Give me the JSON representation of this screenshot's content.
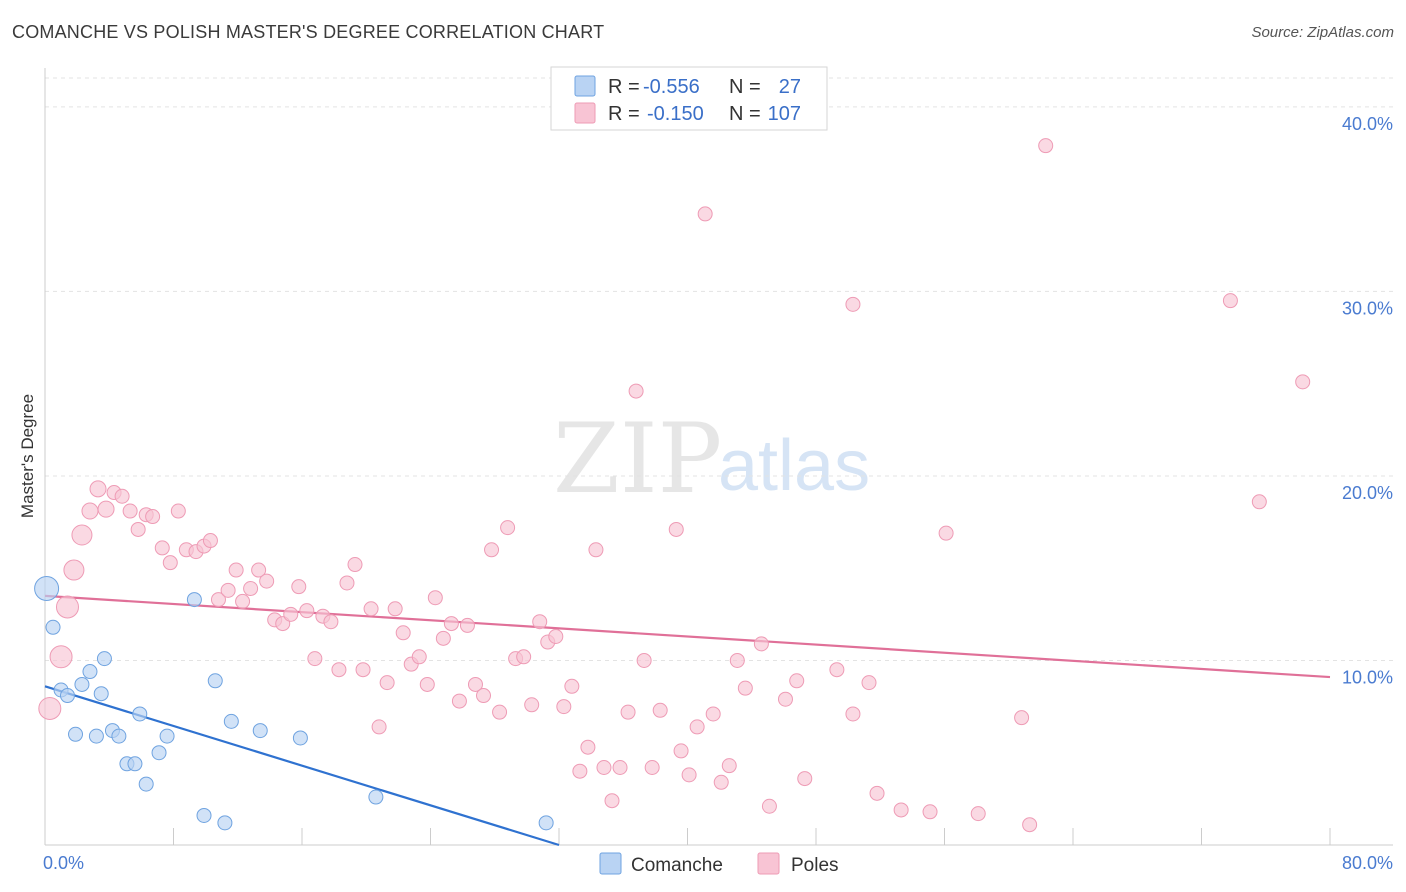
{
  "header": {
    "title": "COMANCHE VS POLISH MASTER'S DEGREE CORRELATION CHART",
    "source": "Source: ZipAtlas.com"
  },
  "watermark": {
    "zip": "ZIP",
    "atlas": "atlas"
  },
  "chart_data": {
    "type": "scatter",
    "title": "COMANCHE VS POLISH MASTER'S DEGREE CORRELATION CHART",
    "xlabel": "",
    "ylabel": "Master's Degree",
    "xlim": [
      0,
      80
    ],
    "ylim": [
      0,
      42
    ],
    "x_tick_labels": {
      "min": "0.0%",
      "max": "80.0%"
    },
    "y_ticks": [
      10,
      20,
      30,
      40
    ],
    "y_tick_labels": [
      "10.0%",
      "20.0%",
      "30.0%",
      "40.0%"
    ],
    "grid": true,
    "legend_position": "bottom-center",
    "series": [
      {
        "name": "Comanche",
        "color": "#6fa3e0",
        "fill": "#b9d3f3",
        "line_color": "#2f72d0",
        "R_label": "R =",
        "R": "-0.556",
        "N_label": "N =",
        "N": "27",
        "trend": {
          "x": [
            0,
            32
          ],
          "y": [
            8.6,
            0
          ]
        },
        "points": [
          {
            "x": 0.1,
            "y": 13.9,
            "s": 24
          },
          {
            "x": 0.5,
            "y": 11.8,
            "s": 14
          },
          {
            "x": 1.0,
            "y": 8.4,
            "s": 14
          },
          {
            "x": 1.4,
            "y": 8.1,
            "s": 14
          },
          {
            "x": 1.9,
            "y": 6.0,
            "s": 14
          },
          {
            "x": 2.3,
            "y": 8.7,
            "s": 14
          },
          {
            "x": 2.8,
            "y": 9.4,
            "s": 14
          },
          {
            "x": 3.2,
            "y": 5.9,
            "s": 14
          },
          {
            "x": 3.5,
            "y": 8.2,
            "s": 14
          },
          {
            "x": 3.7,
            "y": 10.1,
            "s": 14
          },
          {
            "x": 4.2,
            "y": 6.2,
            "s": 14
          },
          {
            "x": 4.6,
            "y": 5.9,
            "s": 14
          },
          {
            "x": 5.1,
            "y": 4.4,
            "s": 14
          },
          {
            "x": 5.6,
            "y": 4.4,
            "s": 14
          },
          {
            "x": 5.9,
            "y": 7.1,
            "s": 14
          },
          {
            "x": 6.3,
            "y": 3.3,
            "s": 14
          },
          {
            "x": 7.1,
            "y": 5.0,
            "s": 14
          },
          {
            "x": 7.6,
            "y": 5.9,
            "s": 14
          },
          {
            "x": 9.3,
            "y": 13.3,
            "s": 14
          },
          {
            "x": 9.9,
            "y": 1.6,
            "s": 14
          },
          {
            "x": 10.6,
            "y": 8.9,
            "s": 14
          },
          {
            "x": 11.2,
            "y": 1.2,
            "s": 14
          },
          {
            "x": 11.6,
            "y": 6.7,
            "s": 14
          },
          {
            "x": 13.4,
            "y": 6.2,
            "s": 14
          },
          {
            "x": 15.9,
            "y": 5.8,
            "s": 14
          },
          {
            "x": 20.6,
            "y": 2.6,
            "s": 14
          },
          {
            "x": 31.2,
            "y": 1.2,
            "s": 14
          }
        ]
      },
      {
        "name": "Poles",
        "color": "#ee9bb5",
        "fill": "#f8c4d4",
        "line_color": "#e07098",
        "R_label": "R =",
        "R": "-0.150",
        "N_label": "N =",
        "N": "107",
        "trend": {
          "x": [
            0,
            80
          ],
          "y": [
            13.5,
            9.1
          ]
        },
        "points": [
          {
            "x": 0.3,
            "y": 7.4,
            "s": 22
          },
          {
            "x": 1.0,
            "y": 10.2,
            "s": 22
          },
          {
            "x": 1.4,
            "y": 12.9,
            "s": 22
          },
          {
            "x": 1.8,
            "y": 14.9,
            "s": 20
          },
          {
            "x": 2.3,
            "y": 16.8,
            "s": 20
          },
          {
            "x": 2.8,
            "y": 18.1,
            "s": 16
          },
          {
            "x": 3.3,
            "y": 19.3,
            "s": 16
          },
          {
            "x": 3.8,
            "y": 18.2,
            "s": 16
          },
          {
            "x": 4.3,
            "y": 19.1,
            "s": 14
          },
          {
            "x": 4.8,
            "y": 18.9,
            "s": 14
          },
          {
            "x": 5.3,
            "y": 18.1,
            "s": 14
          },
          {
            "x": 5.8,
            "y": 17.1,
            "s": 14
          },
          {
            "x": 6.3,
            "y": 17.9,
            "s": 14
          },
          {
            "x": 6.7,
            "y": 17.8,
            "s": 14
          },
          {
            "x": 7.3,
            "y": 16.1,
            "s": 14
          },
          {
            "x": 7.8,
            "y": 15.3,
            "s": 14
          },
          {
            "x": 8.3,
            "y": 18.1,
            "s": 14
          },
          {
            "x": 8.8,
            "y": 16.0,
            "s": 14
          },
          {
            "x": 9.4,
            "y": 15.9,
            "s": 14
          },
          {
            "x": 9.9,
            "y": 16.2,
            "s": 14
          },
          {
            "x": 10.3,
            "y": 16.5,
            "s": 14
          },
          {
            "x": 10.8,
            "y": 13.3,
            "s": 14
          },
          {
            "x": 11.4,
            "y": 13.8,
            "s": 14
          },
          {
            "x": 11.9,
            "y": 14.9,
            "s": 14
          },
          {
            "x": 12.3,
            "y": 13.2,
            "s": 14
          },
          {
            "x": 12.8,
            "y": 13.9,
            "s": 14
          },
          {
            "x": 13.3,
            "y": 14.9,
            "s": 14
          },
          {
            "x": 13.8,
            "y": 14.3,
            "s": 14
          },
          {
            "x": 14.3,
            "y": 12.2,
            "s": 14
          },
          {
            "x": 14.8,
            "y": 12.0,
            "s": 14
          },
          {
            "x": 15.3,
            "y": 12.5,
            "s": 14
          },
          {
            "x": 15.8,
            "y": 14.0,
            "s": 14
          },
          {
            "x": 16.3,
            "y": 12.7,
            "s": 14
          },
          {
            "x": 16.8,
            "y": 10.1,
            "s": 14
          },
          {
            "x": 17.3,
            "y": 12.4,
            "s": 14
          },
          {
            "x": 17.8,
            "y": 12.1,
            "s": 14
          },
          {
            "x": 18.3,
            "y": 9.5,
            "s": 14
          },
          {
            "x": 18.8,
            "y": 14.2,
            "s": 14
          },
          {
            "x": 19.3,
            "y": 15.2,
            "s": 14
          },
          {
            "x": 19.8,
            "y": 9.5,
            "s": 14
          },
          {
            "x": 20.3,
            "y": 12.8,
            "s": 14
          },
          {
            "x": 20.8,
            "y": 6.4,
            "s": 14
          },
          {
            "x": 21.3,
            "y": 8.8,
            "s": 14
          },
          {
            "x": 21.8,
            "y": 12.8,
            "s": 14
          },
          {
            "x": 22.3,
            "y": 11.5,
            "s": 14
          },
          {
            "x": 22.8,
            "y": 9.8,
            "s": 14
          },
          {
            "x": 23.3,
            "y": 10.2,
            "s": 14
          },
          {
            "x": 23.8,
            "y": 8.7,
            "s": 14
          },
          {
            "x": 24.3,
            "y": 13.4,
            "s": 14
          },
          {
            "x": 24.8,
            "y": 11.2,
            "s": 14
          },
          {
            "x": 25.3,
            "y": 12.0,
            "s": 14
          },
          {
            "x": 25.8,
            "y": 7.8,
            "s": 14
          },
          {
            "x": 26.3,
            "y": 11.9,
            "s": 14
          },
          {
            "x": 26.8,
            "y": 8.7,
            "s": 14
          },
          {
            "x": 27.3,
            "y": 8.1,
            "s": 14
          },
          {
            "x": 27.8,
            "y": 16.0,
            "s": 14
          },
          {
            "x": 28.3,
            "y": 7.2,
            "s": 14
          },
          {
            "x": 28.8,
            "y": 17.2,
            "s": 14
          },
          {
            "x": 29.3,
            "y": 10.1,
            "s": 14
          },
          {
            "x": 29.8,
            "y": 10.2,
            "s": 14
          },
          {
            "x": 30.3,
            "y": 7.6,
            "s": 14
          },
          {
            "x": 30.8,
            "y": 12.1,
            "s": 14
          },
          {
            "x": 31.3,
            "y": 11.0,
            "s": 14
          },
          {
            "x": 31.8,
            "y": 11.3,
            "s": 14
          },
          {
            "x": 32.3,
            "y": 7.5,
            "s": 14
          },
          {
            "x": 32.8,
            "y": 8.6,
            "s": 14
          },
          {
            "x": 33.3,
            "y": 4.0,
            "s": 14
          },
          {
            "x": 33.8,
            "y": 5.3,
            "s": 14
          },
          {
            "x": 34.3,
            "y": 16.0,
            "s": 14
          },
          {
            "x": 34.8,
            "y": 4.2,
            "s": 14
          },
          {
            "x": 35.3,
            "y": 2.4,
            "s": 14
          },
          {
            "x": 35.8,
            "y": 4.2,
            "s": 14
          },
          {
            "x": 36.3,
            "y": 7.2,
            "s": 14
          },
          {
            "x": 36.8,
            "y": 24.6,
            "s": 14
          },
          {
            "x": 37.3,
            "y": 10.0,
            "s": 14
          },
          {
            "x": 37.8,
            "y": 4.2,
            "s": 14
          },
          {
            "x": 38.3,
            "y": 7.3,
            "s": 14
          },
          {
            "x": 39.3,
            "y": 17.1,
            "s": 14
          },
          {
            "x": 39.6,
            "y": 5.1,
            "s": 14
          },
          {
            "x": 40.1,
            "y": 3.8,
            "s": 14
          },
          {
            "x": 40.6,
            "y": 6.4,
            "s": 14
          },
          {
            "x": 41.1,
            "y": 34.2,
            "s": 14
          },
          {
            "x": 41.6,
            "y": 7.1,
            "s": 14
          },
          {
            "x": 42.1,
            "y": 3.4,
            "s": 14
          },
          {
            "x": 42.6,
            "y": 4.3,
            "s": 14
          },
          {
            "x": 43.1,
            "y": 10.0,
            "s": 14
          },
          {
            "x": 43.6,
            "y": 8.5,
            "s": 14
          },
          {
            "x": 44.6,
            "y": 10.9,
            "s": 14
          },
          {
            "x": 45.1,
            "y": 2.1,
            "s": 14
          },
          {
            "x": 46.1,
            "y": 7.9,
            "s": 14
          },
          {
            "x": 46.8,
            "y": 8.9,
            "s": 14
          },
          {
            "x": 47.3,
            "y": 3.6,
            "s": 14
          },
          {
            "x": 49.3,
            "y": 9.5,
            "s": 14
          },
          {
            "x": 50.3,
            "y": 29.3,
            "s": 14
          },
          {
            "x": 50.3,
            "y": 7.1,
            "s": 14
          },
          {
            "x": 51.3,
            "y": 8.8,
            "s": 14
          },
          {
            "x": 51.8,
            "y": 2.8,
            "s": 14
          },
          {
            "x": 53.3,
            "y": 1.9,
            "s": 14
          },
          {
            "x": 55.1,
            "y": 1.8,
            "s": 14
          },
          {
            "x": 56.1,
            "y": 16.9,
            "s": 14
          },
          {
            "x": 58.1,
            "y": 1.7,
            "s": 14
          },
          {
            "x": 60.8,
            "y": 6.9,
            "s": 14
          },
          {
            "x": 61.3,
            "y": 1.1,
            "s": 14
          },
          {
            "x": 62.3,
            "y": 37.9,
            "s": 14
          },
          {
            "x": 73.8,
            "y": 29.5,
            "s": 14
          },
          {
            "x": 75.6,
            "y": 18.6,
            "s": 14
          },
          {
            "x": 78.3,
            "y": 25.1,
            "s": 14
          }
        ]
      }
    ]
  }
}
